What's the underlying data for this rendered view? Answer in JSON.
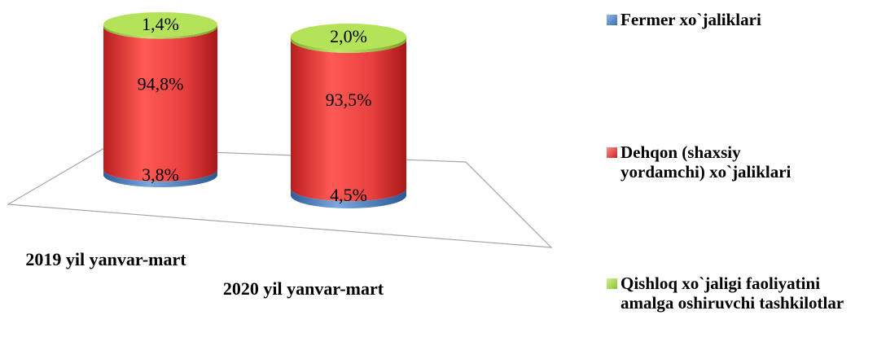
{
  "chart_data": {
    "type": "bar",
    "style": "3d-stacked-cylinder-100-percent",
    "categories": [
      "2019 yil yanvar-mart",
      "2020 yil yanvar-mart"
    ],
    "series": [
      {
        "name": "Fermer xo`jaliklari",
        "color": "#4a7ebb",
        "values": [
          3.8,
          4.5
        ],
        "labels": [
          "3,8%",
          "4,5%"
        ]
      },
      {
        "name": "Dehqon (shaxsiy yordamchi) xo`jaliklari",
        "color": "#e8403f",
        "values": [
          94.8,
          93.5
        ],
        "labels": [
          "94,8%",
          "93,5%"
        ]
      },
      {
        "name": "Qishloq xo`jaligi faoliyatini amalga oshiruvchi tashkilotlar",
        "color": "#a3d44a",
        "values": [
          1.4,
          2.0
        ],
        "labels": [
          "1,4%",
          "2,0%"
        ]
      }
    ],
    "legend_position": "right",
    "grid": false
  }
}
